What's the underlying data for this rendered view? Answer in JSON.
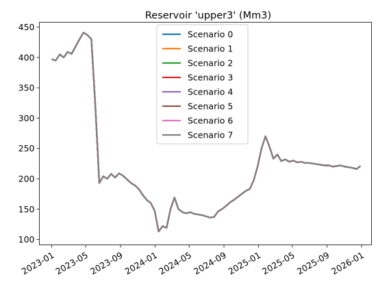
{
  "chart_data": {
    "type": "line",
    "title": "Reservoir 'upper3' (Mm3)",
    "xlabel": "",
    "ylabel": "",
    "xlim": [
      "2022-11-18",
      "2026-02-05"
    ],
    "ylim": [
      91,
      458
    ],
    "x_ticks": [
      "2023-01",
      "2023-05",
      "2023-09",
      "2024-01",
      "2024-05",
      "2024-09",
      "2025-01",
      "2025-05",
      "2025-09",
      "2026-01"
    ],
    "y_ticks": [
      100,
      150,
      200,
      250,
      300,
      350,
      400,
      450
    ],
    "grid": false,
    "legend_placement": "upper center",
    "series_names": [
      "Scenario 0",
      "Scenario 1",
      "Scenario 2",
      "Scenario 3",
      "Scenario 4",
      "Scenario 5",
      "Scenario 6",
      "Scenario 7"
    ],
    "series_colors": [
      "#1f77b4",
      "#ff7f0e",
      "#2ca02c",
      "#d62728",
      "#9467bd",
      "#8c564b",
      "#e377c2",
      "#7f7f7f"
    ],
    "x": [
      "2023-01-01",
      "2023-01-15",
      "2023-01-29",
      "2023-02-12",
      "2023-02-26",
      "2023-03-12",
      "2023-03-26",
      "2023-04-09",
      "2023-04-23",
      "2023-05-07",
      "2023-05-21",
      "2023-06-04",
      "2023-06-18",
      "2023-07-02",
      "2023-07-16",
      "2023-07-30",
      "2023-08-13",
      "2023-08-27",
      "2023-09-10",
      "2023-09-24",
      "2023-10-08",
      "2023-10-22",
      "2023-11-05",
      "2023-11-19",
      "2023-12-03",
      "2023-12-17",
      "2023-12-31",
      "2024-01-14",
      "2024-01-28",
      "2024-02-11",
      "2024-02-25",
      "2024-03-10",
      "2024-03-24",
      "2024-04-07",
      "2024-04-21",
      "2024-05-05",
      "2024-05-19",
      "2024-06-02",
      "2024-06-16",
      "2024-06-30",
      "2024-07-14",
      "2024-07-28",
      "2024-08-11",
      "2024-08-25",
      "2024-09-08",
      "2024-09-22",
      "2024-10-06",
      "2024-10-20",
      "2024-11-03",
      "2024-11-17",
      "2024-12-01",
      "2024-12-15",
      "2024-12-29",
      "2025-01-12",
      "2025-01-26",
      "2025-02-09",
      "2025-02-23",
      "2025-03-09",
      "2025-03-23",
      "2025-04-06",
      "2025-04-20",
      "2025-05-04",
      "2025-05-18",
      "2025-06-01",
      "2025-06-15",
      "2025-06-29",
      "2025-07-13",
      "2025-07-27",
      "2025-08-10",
      "2025-08-24",
      "2025-09-07",
      "2025-09-21",
      "2025-10-05",
      "2025-10-19",
      "2025-11-02",
      "2025-11-16",
      "2025-11-30",
      "2025-12-14",
      "2025-12-28"
    ],
    "y": [
      397,
      395,
      405,
      400,
      409,
      406,
      418,
      430,
      441,
      437,
      430,
      320,
      193,
      204,
      200,
      208,
      202,
      209,
      205,
      199,
      193,
      189,
      183,
      173,
      165,
      160,
      147,
      113,
      122,
      119,
      150,
      169,
      150,
      145,
      143,
      145,
      142,
      141,
      140,
      138,
      136,
      137,
      146,
      150,
      155,
      161,
      165,
      170,
      175,
      180,
      183,
      197,
      220,
      250,
      270,
      253,
      233,
      240,
      229,
      232,
      228,
      230,
      227,
      228,
      226,
      226,
      225,
      224,
      223,
      222,
      222,
      220,
      221,
      222,
      220,
      219,
      218,
      216,
      221
    ],
    "series": [
      {
        "name": "Scenario 0"
      },
      {
        "name": "Scenario 1"
      },
      {
        "name": "Scenario 2"
      },
      {
        "name": "Scenario 3"
      },
      {
        "name": "Scenario 4"
      },
      {
        "name": "Scenario 5"
      },
      {
        "name": "Scenario 6"
      },
      {
        "name": "Scenario 7"
      }
    ]
  }
}
